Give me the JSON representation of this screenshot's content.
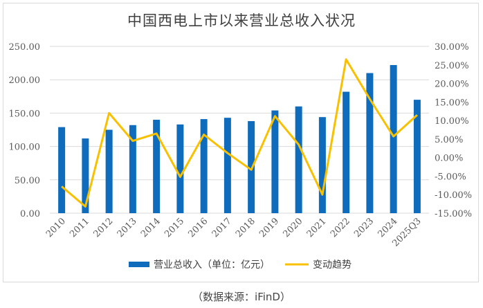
{
  "title": "中国西电上市以来营业总收入状况",
  "source_note": "（数据来源：iFinD）",
  "colors": {
    "bar": "#0f6cbd",
    "line": "#f9c000",
    "grid": "#d9d9d9",
    "axis_text": "#595959"
  },
  "chart_data": {
    "type": "bar+line",
    "title": "中国西电上市以来营业总收入状况",
    "categories": [
      "2010",
      "2011",
      "2012",
      "2013",
      "2014",
      "2015",
      "2016",
      "2017",
      "2018",
      "2019",
      "2020",
      "2021",
      "2022",
      "2023",
      "2024",
      "2025Q3"
    ],
    "series": [
      {
        "name": "营业总收入（单位：亿元）",
        "type": "bar",
        "axis": "left",
        "values": [
          129,
          112,
          125,
          132,
          140,
          133,
          141,
          143,
          138,
          154,
          160,
          144,
          182,
          210,
          222,
          170
        ]
      },
      {
        "name": "变动趋势",
        "type": "line",
        "axis": "right",
        "values": [
          -7.8,
          -13.2,
          12.0,
          4.5,
          6.5,
          -5.2,
          6.2,
          1.2,
          -3.3,
          11.2,
          3.5,
          -10.0,
          26.5,
          15.8,
          5.7,
          11.5
        ]
      }
    ],
    "y_left": {
      "min": 0,
      "max": 250,
      "step": 50,
      "ticks": [
        "0.00",
        "50.00",
        "100.00",
        "150.00",
        "200.00",
        "250.00"
      ]
    },
    "y_right": {
      "min": -15,
      "max": 30,
      "step": 5,
      "ticks": [
        "-15.00%",
        "-10.00%",
        "-5.00%",
        "0.00%",
        "5.00%",
        "10.00%",
        "15.00%",
        "20.00%",
        "25.00%",
        "30.00%"
      ]
    },
    "grid": true,
    "legend_position": "bottom"
  }
}
